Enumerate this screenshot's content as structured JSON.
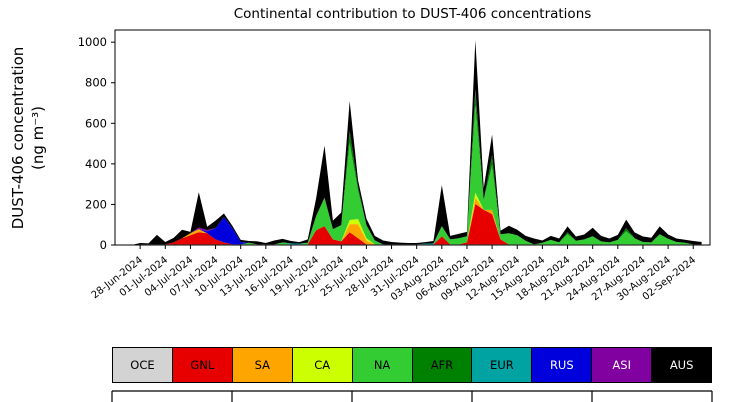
{
  "figure": {
    "title": "Continental contribution to DUST-406 concentrations",
    "ylabel_line1": "DUST-406 concentration",
    "ylabel_line2": "(ng m⁻³)"
  },
  "chart_data": {
    "type": "area",
    "stacked": true,
    "title": "Continental contribution to DUST-406 concentrations",
    "xlabel": "",
    "ylabel": "DUST-406 concentration (ng m⁻³)",
    "x_unit": "days, index 0 = 26-Jun-2024, daily estimates",
    "xlim": [
      -1,
      70
    ],
    "ylim": [
      0,
      1060
    ],
    "y_ticks": [
      0,
      200,
      400,
      600,
      800,
      1000
    ],
    "grid": false,
    "legend_position": "bottom",
    "x_tick_indices": [
      2,
      5,
      8,
      11,
      14,
      17,
      20,
      23,
      26,
      29,
      32,
      35,
      38,
      41,
      44,
      47,
      50,
      53,
      56,
      59,
      62,
      65,
      68
    ],
    "x_tick_labels": [
      "28-Jun-2024",
      "01-Jul-2024",
      "04-Jul-2024",
      "07-Jul-2024",
      "10-Jul-2024",
      "13-Jul-2024",
      "16-Jul-2024",
      "19-Jul-2024",
      "22-Jul-2024",
      "25-Jul-2024",
      "28-Jul-2024",
      "31-Jul-2024",
      "03-Aug-2024",
      "06-Aug-2024",
      "09-Aug-2024",
      "12-Aug-2024",
      "15-Aug-2024",
      "18-Aug-2024",
      "21-Aug-2024",
      "24-Aug-2024",
      "27-Aug-2024",
      "30-Aug-2024",
      "02-Sep-2024"
    ],
    "series": [
      {
        "name": "OCE",
        "color": "#d3d3d3",
        "values": [
          0,
          0,
          3,
          3,
          3,
          3,
          3,
          3,
          3,
          3,
          3,
          3,
          3,
          3,
          3,
          3,
          3,
          3,
          3,
          3,
          3,
          3,
          3,
          3,
          3,
          3,
          3,
          3,
          3,
          3,
          3,
          3,
          3,
          3,
          3,
          3,
          3,
          3,
          3,
          3,
          3,
          3,
          3,
          3,
          3,
          3,
          3,
          3,
          3,
          3,
          3,
          3,
          3,
          3,
          3,
          3,
          3,
          3,
          3,
          3,
          3,
          3,
          3,
          3,
          3,
          3,
          3,
          3,
          3,
          3
        ]
      },
      {
        "name": "GNL",
        "color": "#e60000",
        "values": [
          0,
          0,
          0,
          0,
          0,
          0,
          10,
          30,
          45,
          60,
          55,
          25,
          10,
          0,
          0,
          0,
          0,
          0,
          0,
          0,
          0,
          0,
          0,
          70,
          90,
          25,
          15,
          60,
          30,
          0,
          0,
          0,
          0,
          0,
          0,
          0,
          0,
          0,
          40,
          0,
          0,
          10,
          200,
          170,
          150,
          25,
          0,
          0,
          0,
          0,
          0,
          0,
          0,
          0,
          0,
          0,
          0,
          0,
          0,
          0,
          0,
          0,
          0,
          0,
          0,
          0,
          0,
          0,
          0,
          0
        ]
      },
      {
        "name": "SA",
        "color": "#ffa500",
        "values": [
          0,
          0,
          0,
          0,
          0,
          0,
          0,
          0,
          10,
          15,
          0,
          0,
          0,
          0,
          0,
          0,
          0,
          0,
          0,
          0,
          0,
          0,
          0,
          0,
          0,
          0,
          0,
          40,
          70,
          20,
          0,
          0,
          0,
          0,
          0,
          0,
          0,
          0,
          0,
          0,
          0,
          0,
          30,
          0,
          20,
          0,
          0,
          0,
          0,
          0,
          0,
          0,
          0,
          0,
          0,
          0,
          0,
          0,
          0,
          0,
          0,
          0,
          0,
          0,
          0,
          0,
          0,
          0,
          0,
          0
        ]
      },
      {
        "name": "CA",
        "color": "#ccff00",
        "values": [
          0,
          0,
          0,
          0,
          0,
          0,
          0,
          0,
          0,
          0,
          0,
          0,
          0,
          0,
          0,
          0,
          0,
          0,
          0,
          0,
          0,
          0,
          0,
          0,
          0,
          0,
          0,
          20,
          25,
          10,
          0,
          0,
          0,
          0,
          0,
          0,
          0,
          0,
          0,
          0,
          0,
          0,
          25,
          0,
          0,
          0,
          0,
          0,
          0,
          0,
          0,
          0,
          0,
          0,
          0,
          0,
          0,
          0,
          0,
          0,
          0,
          0,
          0,
          0,
          0,
          0,
          0,
          0,
          0,
          0
        ]
      },
      {
        "name": "NA",
        "color": "#33cc33",
        "values": [
          0,
          0,
          0,
          0,
          0,
          0,
          0,
          0,
          0,
          0,
          0,
          0,
          0,
          0,
          0,
          8,
          0,
          0,
          0,
          10,
          0,
          0,
          8,
          70,
          140,
          50,
          80,
          380,
          140,
          65,
          20,
          0,
          0,
          0,
          0,
          0,
          0,
          0,
          50,
          25,
          30,
          30,
          430,
          50,
          220,
          25,
          55,
          45,
          18,
          0,
          8,
          22,
          10,
          50,
          18,
          25,
          40,
          15,
          10,
          22,
          65,
          30,
          12,
          10,
          50,
          28,
          12,
          8,
          0,
          0
        ]
      },
      {
        "name": "AFR",
        "color": "#008000",
        "values": [
          0,
          0,
          0,
          0,
          0,
          0,
          0,
          0,
          0,
          0,
          0,
          0,
          0,
          0,
          0,
          0,
          0,
          0,
          0,
          0,
          0,
          0,
          0,
          0,
          0,
          0,
          0,
          60,
          20,
          0,
          0,
          0,
          0,
          0,
          0,
          0,
          0,
          0,
          0,
          0,
          0,
          0,
          70,
          0,
          50,
          0,
          0,
          0,
          0,
          0,
          0,
          0,
          0,
          10,
          0,
          0,
          0,
          0,
          0,
          0,
          15,
          0,
          0,
          0,
          0,
          0,
          0,
          0,
          0,
          0
        ]
      },
      {
        "name": "EUR",
        "color": "#00a2a2",
        "values": [
          0,
          0,
          0,
          0,
          0,
          0,
          0,
          0,
          0,
          0,
          0,
          0,
          0,
          0,
          0,
          0,
          0,
          0,
          0,
          0,
          5,
          4,
          0,
          0,
          0,
          0,
          0,
          0,
          0,
          0,
          0,
          0,
          0,
          0,
          0,
          0,
          4,
          5,
          0,
          0,
          0,
          0,
          0,
          0,
          0,
          0,
          0,
          0,
          0,
          0,
          0,
          0,
          0,
          0,
          0,
          0,
          0,
          0,
          0,
          0,
          0,
          0,
          0,
          0,
          0,
          0,
          0,
          0,
          0,
          0
        ]
      },
      {
        "name": "RUS",
        "color": "#0000dd",
        "values": [
          0,
          0,
          0,
          0,
          0,
          0,
          0,
          0,
          0,
          0,
          10,
          55,
          125,
          80,
          12,
          0,
          0,
          0,
          0,
          0,
          0,
          0,
          0,
          0,
          0,
          0,
          0,
          0,
          0,
          0,
          0,
          0,
          0,
          0,
          0,
          0,
          0,
          0,
          0,
          0,
          0,
          0,
          0,
          0,
          0,
          0,
          0,
          0,
          0,
          0,
          0,
          0,
          0,
          0,
          0,
          0,
          0,
          0,
          0,
          0,
          0,
          0,
          0,
          0,
          0,
          0,
          0,
          0,
          0,
          0
        ]
      },
      {
        "name": "ASI",
        "color": "#8000a0",
        "values": [
          0,
          0,
          0,
          0,
          0,
          0,
          0,
          0,
          0,
          8,
          6,
          0,
          0,
          0,
          0,
          0,
          0,
          0,
          0,
          0,
          0,
          0,
          0,
          0,
          0,
          0,
          0,
          0,
          0,
          0,
          0,
          0,
          0,
          0,
          0,
          0,
          0,
          0,
          0,
          0,
          0,
          0,
          10,
          0,
          0,
          0,
          0,
          0,
          0,
          0,
          0,
          0,
          0,
          0,
          0,
          0,
          0,
          0,
          0,
          0,
          0,
          0,
          0,
          0,
          0,
          0,
          0,
          0,
          0,
          0
        ]
      },
      {
        "name": "AUS",
        "color": "#000000",
        "values": [
          0,
          0,
          7,
          5,
          47,
          12,
          22,
          42,
          7,
          174,
          16,
          37,
          17,
          12,
          10,
          9,
          15,
          7,
          19,
          17,
          12,
          7,
          17,
          87,
          257,
          42,
          62,
          147,
          32,
          32,
          22,
          19,
          12,
          9,
          7,
          7,
          7,
          12,
          202,
          17,
          22,
          22,
          242,
          57,
          102,
          17,
          37,
          27,
          24,
          29,
          11,
          20,
          19,
          29,
          21,
          24,
          42,
          27,
          19,
          25,
          42,
          29,
          27,
          23,
          39,
          21,
          17,
          15,
          17,
          12
        ]
      }
    ]
  },
  "legend": {
    "items": [
      {
        "label": "OCE",
        "color": "#d3d3d3",
        "text_color": "#000000"
      },
      {
        "label": "GNL",
        "color": "#e60000",
        "text_color": "#000000"
      },
      {
        "label": "SA",
        "color": "#ffa500",
        "text_color": "#000000"
      },
      {
        "label": "CA",
        "color": "#ccff00",
        "text_color": "#000000"
      },
      {
        "label": "NA",
        "color": "#33cc33",
        "text_color": "#000000"
      },
      {
        "label": "AFR",
        "color": "#008000",
        "text_color": "#000000"
      },
      {
        "label": "EUR",
        "color": "#00a2a2",
        "text_color": "#000000"
      },
      {
        "label": "RUS",
        "color": "#0000dd",
        "text_color": "#ffffff"
      },
      {
        "label": "ASI",
        "color": "#8000a0",
        "text_color": "#ffffff"
      },
      {
        "label": "AUS",
        "color": "#000000",
        "text_color": "#ffffff"
      }
    ]
  }
}
